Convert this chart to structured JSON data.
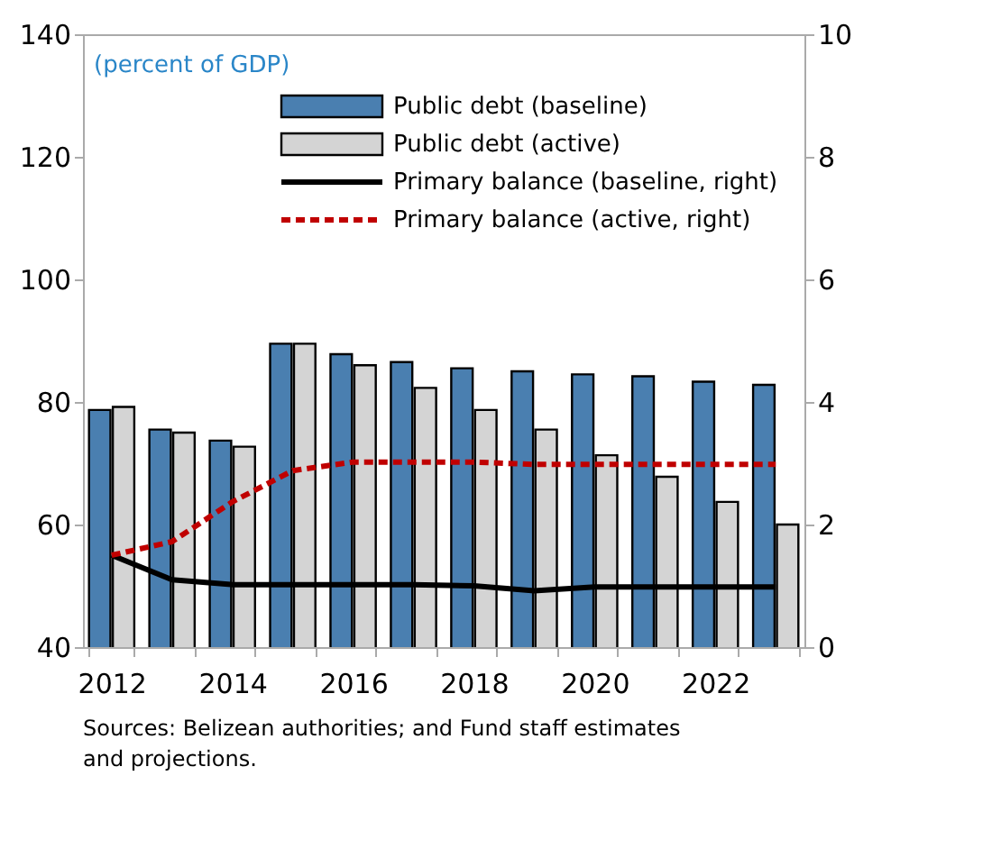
{
  "chart_data": {
    "type": "bar",
    "ylabel": "(percent of GDP)",
    "categories": [
      "2012",
      null,
      "2014",
      null,
      "2016",
      null,
      "2018",
      null,
      "2020",
      null,
      "2022",
      null
    ],
    "series": [
      {
        "name": "Public debt (baseline)",
        "color": "#4a7fb0",
        "values": [
          78.7,
          75.5,
          73.7,
          89.5,
          87.8,
          86.5,
          85.5,
          85.0,
          84.5,
          84.2,
          83.3,
          82.8
        ]
      },
      {
        "name": "Public debt (active)",
        "color": "#d4d4d4",
        "values": [
          79.2,
          75.0,
          72.7,
          89.5,
          86.0,
          82.3,
          78.7,
          75.5,
          71.3,
          67.8,
          63.7,
          60.0
        ]
      },
      {
        "name": "Primary balance (baseline, right)",
        "type": "line",
        "axis": "y2",
        "color": "#000000",
        "line_style": "solid",
        "values": [
          1.5,
          1.1,
          1.02,
          1.02,
          1.02,
          1.02,
          1.0,
          0.92,
          0.98,
          0.98,
          0.98,
          0.98
        ]
      },
      {
        "name": "Primary balance (active, right)",
        "type": "line",
        "axis": "y2",
        "color": "#c00000",
        "line_style": "dashed",
        "values": [
          1.5,
          1.72,
          2.37,
          2.88,
          3.02,
          3.02,
          3.02,
          2.98,
          2.98,
          2.98,
          2.98,
          2.98
        ]
      }
    ],
    "ylim": [
      40,
      140
    ],
    "yticks": [
      40,
      60,
      80,
      100,
      120,
      140
    ],
    "y2lim": [
      0,
      10
    ],
    "y2ticks": [
      0,
      2,
      4,
      6,
      8,
      10
    ],
    "legend": "top",
    "grid": false,
    "annotations": [
      "Sources: Belizean authorities; and Fund  staff estimates and projections."
    ]
  }
}
